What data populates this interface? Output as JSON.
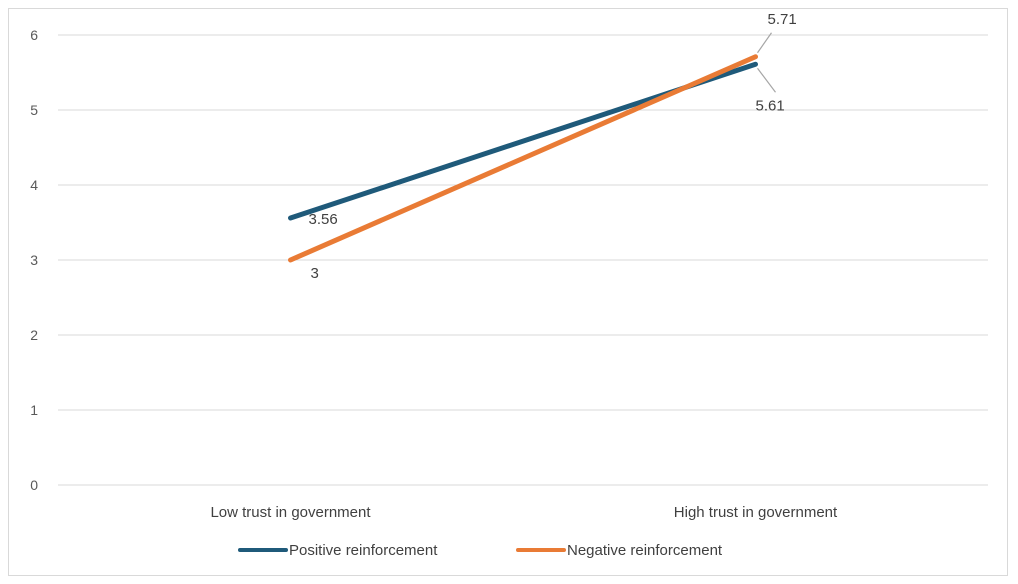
{
  "chart_data": {
    "type": "line",
    "categories": [
      "Low trust in government",
      "High trust in government"
    ],
    "series": [
      {
        "name": "Positive reinforcement",
        "values": [
          3.56,
          5.61
        ],
        "color": "#1f5a7a",
        "labels": [
          "3.56",
          "5.61"
        ]
      },
      {
        "name": "Negative reinforcement",
        "values": [
          3,
          5.71
        ],
        "color": "#e97b35",
        "labels": [
          "3",
          "5.71"
        ]
      }
    ],
    "y_ticks": [
      "0",
      "1",
      "2",
      "3",
      "4",
      "5",
      "6"
    ],
    "ylim": [
      0,
      6
    ],
    "grid": true,
    "legend_position": "bottom"
  }
}
